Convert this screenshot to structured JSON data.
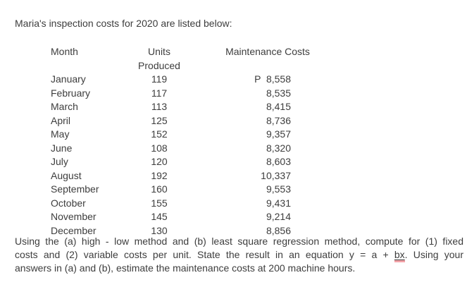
{
  "title": "Maria's inspection costs for 2020 are listed below:",
  "table": {
    "headers": {
      "month": "Month",
      "units": "Units Produced",
      "cost": "Maintenance Costs"
    },
    "currency_symbol": "P",
    "rows": [
      {
        "month": "January",
        "units": "119",
        "cost": "P  8,558"
      },
      {
        "month": "February",
        "units": "117",
        "cost": "8,535"
      },
      {
        "month": "March",
        "units": "113",
        "cost": "8,415"
      },
      {
        "month": "April",
        "units": "125",
        "cost": "8,736"
      },
      {
        "month": "May",
        "units": "152",
        "cost": "9,357"
      },
      {
        "month": "June",
        "units": "108",
        "cost": "8,320"
      },
      {
        "month": "July",
        "units": "120",
        "cost": "8,603"
      },
      {
        "month": "August",
        "units": "192",
        "cost": "10,337"
      },
      {
        "month": "September",
        "units": "160",
        "cost": "9,553"
      },
      {
        "month": "October",
        "units": "155",
        "cost": "9,431"
      },
      {
        "month": "November",
        "units": "145",
        "cost": "9,214"
      },
      {
        "month": "December",
        "units": "130",
        "cost": "8,856"
      }
    ]
  },
  "question": {
    "line1": "Using the (a) high - low method and (b) least square regression method, compute for (1) fixed",
    "line2_before": "costs and (2) variable costs per unit.  State the result in an equation  y = a + ",
    "line2_underlined": "bx",
    "line2_after": ".  Using your",
    "line3": "answers in (a) and (b), estimate the maintenance costs at 200 machine hours."
  },
  "colors": {
    "background": "#ffffff",
    "text": "#3d3d3d",
    "spellcheck_underline": "#f2a2a8"
  }
}
